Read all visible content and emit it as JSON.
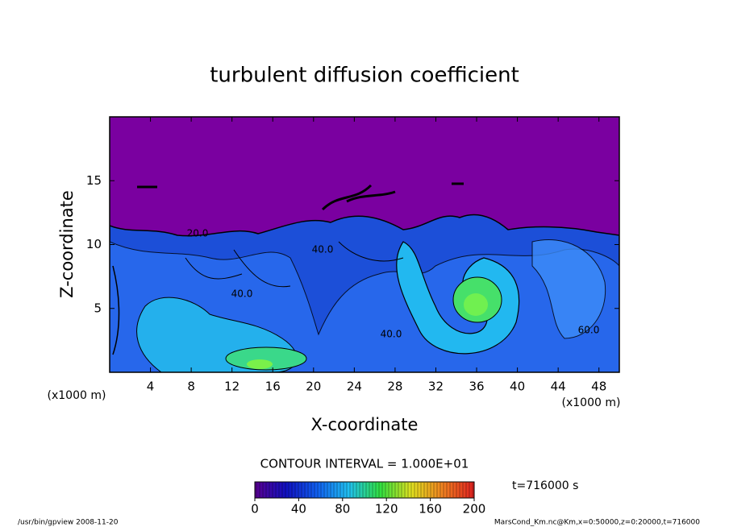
{
  "chart_data": {
    "type": "contour",
    "title": "turbulent diffusion coefficient",
    "xlabel": "X-coordinate",
    "ylabel": "Z-coordinate",
    "x_unit": "(x1000 m)",
    "y_unit": "(x1000 m)",
    "xlim": [
      0,
      50
    ],
    "xticks": [
      4,
      8,
      12,
      16,
      20,
      24,
      28,
      32,
      36,
      40,
      44,
      48
    ],
    "ylim": [
      0,
      20
    ],
    "yticks": [
      5,
      10,
      15
    ],
    "contour_labels": [
      "20.0",
      "40.0",
      "40.0",
      "40.0",
      "60.0"
    ],
    "contour_interval": "CONTOUR INTERVAL = 1.000E+01",
    "colorbar": {
      "lim": [
        0,
        200
      ],
      "ticks": [
        0,
        40,
        80,
        120,
        160,
        200
      ],
      "colors": [
        "#5a0090",
        "#1010c0",
        "#1060f0",
        "#20c0f0",
        "#30e040",
        "#e0e020",
        "#f08020",
        "#e02020"
      ]
    },
    "time_label": "t=716000 s",
    "footer_left": "/usr/bin/gpview  2008-11-20",
    "footer_right": "MarsCond_Km.nc@Km,x=0:50000,z=0:20000,t=716000"
  }
}
